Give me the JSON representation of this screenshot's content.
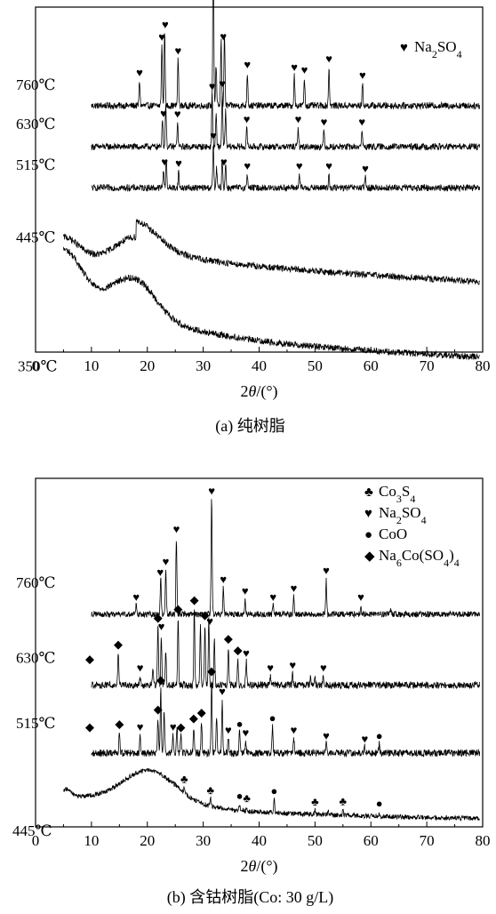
{
  "panels": [
    {
      "id": "a",
      "caption": "(a) 纯树脂",
      "x_axis_title_prefix": "2",
      "x_axis_title_theta": "θ",
      "x_axis_title_suffix": "/(°)",
      "legend": [
        {
          "symbol": "♥",
          "text_parts": [
            [
              "Na",
              ""
            ],
            [
              "2",
              "sub"
            ],
            [
              "SO",
              ""
            ],
            [
              "4",
              "sub"
            ]
          ]
        }
      ],
      "traces": [
        {
          "label": "760℃"
        },
        {
          "label": "630℃"
        },
        {
          "label": "515℃"
        },
        {
          "label": "445℃"
        },
        {
          "label": "350℃"
        }
      ]
    },
    {
      "id": "b",
      "caption": "(b) 含钴树脂(Co: 30 g/L)",
      "x_axis_title_prefix": "2",
      "x_axis_title_theta": "θ",
      "x_axis_title_suffix": "/(°)",
      "legend": [
        {
          "symbol": "♣",
          "text_parts": [
            [
              "Co",
              ""
            ],
            [
              "3",
              "sub"
            ],
            [
              "S",
              ""
            ],
            [
              "4",
              "sub"
            ]
          ]
        },
        {
          "symbol": "♥",
          "text_parts": [
            [
              "Na",
              ""
            ],
            [
              "2",
              "sub"
            ],
            [
              "SO",
              ""
            ],
            [
              "4",
              "sub"
            ]
          ]
        },
        {
          "symbol": "●",
          "text_parts": [
            [
              "CoO",
              ""
            ]
          ]
        },
        {
          "symbol": "◆",
          "text_parts": [
            [
              "Na",
              ""
            ],
            [
              "6",
              "sub"
            ],
            [
              "Co(SO",
              ""
            ],
            [
              "4",
              "sub"
            ],
            [
              ")",
              ""
            ],
            [
              "4",
              "sub"
            ]
          ]
        }
      ],
      "traces": [
        {
          "label": "760℃"
        },
        {
          "label": "630℃"
        },
        {
          "label": "515℃"
        },
        {
          "label": "445℃"
        }
      ]
    }
  ],
  "chart_data": [
    {
      "type": "line",
      "panel": "a",
      "title": "(a) 纯树脂",
      "xlabel": "2θ/(°)",
      "ylabel": "",
      "xlim": [
        0,
        80
      ],
      "xticks": [
        0,
        10,
        20,
        30,
        40,
        50,
        60,
        70,
        80
      ],
      "grid": false,
      "legend_position": "top-right",
      "series": [
        {
          "name": "760℃",
          "baseline": 8.6,
          "background": "flat",
          "noise": 0.12,
          "peaks": [
            [
              18.6,
              0.9
            ],
            [
              22.6,
              2.2
            ],
            [
              23.1,
              2.8
            ],
            [
              25.5,
              1.7
            ],
            [
              31.8,
              6.2
            ],
            [
              32.3,
              1.5
            ],
            [
              33.2,
              2.4
            ],
            [
              33.8,
              2.7
            ],
            [
              37.9,
              1.2
            ],
            [
              46.3,
              1.1
            ],
            [
              48.1,
              1.0
            ],
            [
              52.5,
              1.4
            ],
            [
              58.5,
              0.8
            ]
          ],
          "markers": [
            {
              "x": 18.6,
              "symbol": "♥"
            },
            {
              "x": 22.6,
              "symbol": "♥"
            },
            {
              "x": 23.2,
              "symbol": "♥"
            },
            {
              "x": 25.5,
              "symbol": "♥"
            },
            {
              "x": 31.8,
              "symbol": "♥"
            },
            {
              "x": 33.6,
              "symbol": "♥"
            },
            {
              "x": 37.9,
              "symbol": "♥"
            },
            {
              "x": 46.3,
              "symbol": "♥"
            },
            {
              "x": 48.1,
              "symbol": "♥"
            },
            {
              "x": 52.5,
              "symbol": "♥"
            },
            {
              "x": 58.5,
              "symbol": "♥"
            }
          ]
        },
        {
          "name": "630℃",
          "baseline": 7.1,
          "background": "flat",
          "noise": 0.12,
          "peaks": [
            [
              22.7,
              1.1
            ],
            [
              23.3,
              1.6
            ],
            [
              25.4,
              0.9
            ],
            [
              31.6,
              1.9
            ],
            [
              32.3,
              1.2
            ],
            [
              33.4,
              2.0
            ],
            [
              34.0,
              1.3
            ],
            [
              37.8,
              0.7
            ],
            [
              47.0,
              0.7
            ],
            [
              51.6,
              0.6
            ],
            [
              58.4,
              0.6
            ]
          ],
          "markers": [
            {
              "x": 22.9,
              "symbol": "♥"
            },
            {
              "x": 25.4,
              "symbol": "♥"
            },
            {
              "x": 31.6,
              "symbol": "♥"
            },
            {
              "x": 33.4,
              "symbol": "♥"
            },
            {
              "x": 37.8,
              "symbol": "♥"
            },
            {
              "x": 47.0,
              "symbol": "♥"
            },
            {
              "x": 51.6,
              "symbol": "♥"
            },
            {
              "x": 58.4,
              "symbol": "♥"
            }
          ]
        },
        {
          "name": "515℃",
          "baseline": 5.6,
          "background": "flat",
          "noise": 0.12,
          "peaks": [
            [
              22.9,
              0.7
            ],
            [
              23.4,
              1.0
            ],
            [
              25.6,
              0.6
            ],
            [
              31.8,
              1.6
            ],
            [
              32.4,
              0.7
            ],
            [
              33.4,
              1.0
            ],
            [
              34.0,
              0.9
            ],
            [
              37.9,
              0.5
            ],
            [
              47.2,
              0.5
            ],
            [
              52.5,
              0.5
            ],
            [
              59.0,
              0.4
            ]
          ],
          "markers": [
            {
              "x": 23.1,
              "symbol": "♥"
            },
            {
              "x": 25.6,
              "symbol": "♥"
            },
            {
              "x": 31.8,
              "symbol": "♥"
            },
            {
              "x": 33.7,
              "symbol": "♥"
            },
            {
              "x": 37.9,
              "symbol": "♥"
            },
            {
              "x": 47.2,
              "symbol": "♥"
            },
            {
              "x": 52.5,
              "symbol": "♥"
            },
            {
              "x": 59.0,
              "symbol": "♥"
            }
          ]
        },
        {
          "name": "445℃",
          "baseline": 2.9,
          "background": "amorphous-high",
          "noise": 0.12,
          "peaks": [],
          "markers": []
        },
        {
          "name": "350℃",
          "baseline": 0.2,
          "background": "amorphous-low",
          "noise": 0.12,
          "peaks": [],
          "markers": []
        }
      ]
    },
    {
      "type": "line",
      "panel": "b",
      "title": "(b) 含钴树脂(Co: 30 g/L)",
      "xlabel": "2θ/(°)",
      "ylabel": "",
      "xlim": [
        0,
        80
      ],
      "xticks": [
        0,
        10,
        20,
        30,
        40,
        50,
        60,
        70,
        80
      ],
      "grid": false,
      "legend_position": "top-right",
      "series": [
        {
          "name": "760℃",
          "baseline": 6.6,
          "background": "flat",
          "noise": 0.1,
          "peaks": [
            [
              18.0,
              0.3
            ],
            [
              22.4,
              1.2
            ],
            [
              23.3,
              1.5
            ],
            [
              25.2,
              2.6
            ],
            [
              31.5,
              3.9
            ],
            [
              33.6,
              0.9
            ],
            [
              37.5,
              0.5
            ],
            [
              42.5,
              0.3
            ],
            [
              46.2,
              0.6
            ],
            [
              52.0,
              1.2
            ],
            [
              58.2,
              0.3
            ],
            [
              63.5,
              0.2
            ]
          ],
          "markers": [
            {
              "x": 18.0,
              "symbol": "♥"
            },
            {
              "x": 22.3,
              "symbol": "♥"
            },
            {
              "x": 23.3,
              "symbol": "♥"
            },
            {
              "x": 25.2,
              "symbol": "♥"
            },
            {
              "x": 31.5,
              "symbol": "♥"
            },
            {
              "x": 33.6,
              "symbol": "♥"
            },
            {
              "x": 37.5,
              "symbol": "♥"
            },
            {
              "x": 42.5,
              "symbol": "♥"
            },
            {
              "x": 46.2,
              "symbol": "♥"
            },
            {
              "x": 52.0,
              "symbol": "♥"
            },
            {
              "x": 58.2,
              "symbol": "♥"
            }
          ]
        },
        {
          "name": "630℃",
          "baseline": 4.2,
          "background": "flat",
          "noise": 0.12,
          "peaks": [
            [
              9.7,
              0.6
            ],
            [
              14.8,
              1.1
            ],
            [
              18.7,
              0.3
            ],
            [
              21.0,
              0.5
            ],
            [
              21.9,
              2.0
            ],
            [
              22.5,
              1.7
            ],
            [
              23.3,
              1.2
            ],
            [
              25.5,
              2.3
            ],
            [
              28.4,
              2.6
            ],
            [
              29.5,
              2.0
            ],
            [
              30.3,
              2.1
            ],
            [
              31.0,
              2.3
            ],
            [
              32.0,
              1.6
            ],
            [
              34.5,
              1.3
            ],
            [
              36.2,
              0.9
            ],
            [
              37.7,
              0.8
            ],
            [
              42.0,
              0.3
            ],
            [
              46.0,
              0.4
            ],
            [
              49.2,
              0.3
            ],
            [
              50.0,
              0.2
            ],
            [
              51.5,
              0.3
            ]
          ],
          "markers": [
            {
              "x": 9.7,
              "symbol": "◆"
            },
            {
              "x": 14.8,
              "symbol": "◆"
            },
            {
              "x": 18.7,
              "symbol": "♥"
            },
            {
              "x": 21.9,
              "symbol": "◆"
            },
            {
              "x": 22.5,
              "symbol": "♥"
            },
            {
              "x": 25.5,
              "symbol": "◆"
            },
            {
              "x": 28.4,
              "symbol": "◆"
            },
            {
              "x": 30.3,
              "symbol": "◆"
            },
            {
              "x": 31.2,
              "symbol": "♥"
            },
            {
              "x": 34.5,
              "symbol": "◆"
            },
            {
              "x": 36.2,
              "symbol": "◆"
            },
            {
              "x": 37.7,
              "symbol": "♥"
            },
            {
              "x": 42.0,
              "symbol": "♥"
            },
            {
              "x": 46.0,
              "symbol": "♥"
            },
            {
              "x": 51.5,
              "symbol": "♥"
            }
          ]
        },
        {
          "name": "515℃",
          "baseline": 1.9,
          "background": "flat",
          "noise": 0.12,
          "peaks": [
            [
              9.7,
              0.6
            ],
            [
              15.0,
              0.7
            ],
            [
              18.7,
              0.6
            ],
            [
              21.9,
              1.2
            ],
            [
              22.4,
              2.2
            ],
            [
              23.0,
              1.4
            ],
            [
              24.6,
              0.6
            ],
            [
              25.3,
              0.9
            ],
            [
              26.0,
              0.6
            ],
            [
              28.3,
              0.9
            ],
            [
              29.7,
              1.1
            ],
            [
              31.5,
              2.5
            ],
            [
              32.4,
              1.3
            ],
            [
              33.4,
              1.8
            ],
            [
              34.5,
              0.5
            ],
            [
              36.5,
              0.7
            ],
            [
              37.6,
              0.4
            ],
            [
              42.4,
              0.9
            ],
            [
              46.2,
              0.5
            ],
            [
              52.0,
              0.3
            ],
            [
              58.9,
              0.2
            ],
            [
              61.5,
              0.3
            ]
          ],
          "markers": [
            {
              "x": 9.7,
              "symbol": "◆"
            },
            {
              "x": 15.0,
              "symbol": "◆"
            },
            {
              "x": 18.7,
              "symbol": "♥"
            },
            {
              "x": 21.9,
              "symbol": "◆"
            },
            {
              "x": 22.4,
              "symbol": "◆"
            },
            {
              "x": 24.6,
              "symbol": "♥"
            },
            {
              "x": 26.0,
              "symbol": "◆"
            },
            {
              "x": 28.3,
              "symbol": "◆"
            },
            {
              "x": 29.7,
              "symbol": "◆"
            },
            {
              "x": 31.5,
              "symbol": "◆"
            },
            {
              "x": 33.4,
              "symbol": "♥"
            },
            {
              "x": 34.5,
              "symbol": "♥"
            },
            {
              "x": 36.5,
              "symbol": "●"
            },
            {
              "x": 37.6,
              "symbol": "♥"
            },
            {
              "x": 42.4,
              "symbol": "●"
            },
            {
              "x": 46.2,
              "symbol": "♥"
            },
            {
              "x": 52.0,
              "symbol": "♥"
            },
            {
              "x": 58.9,
              "symbol": "♥"
            },
            {
              "x": 61.5,
              "symbol": "●"
            }
          ]
        },
        {
          "name": "445℃",
          "baseline": 0.0,
          "background": "amorphous-b",
          "noise": 0.08,
          "peaks": [
            [
              26.6,
              0.2
            ],
            [
              31.3,
              0.25
            ],
            [
              36.5,
              0.2
            ],
            [
              37.8,
              0.15
            ],
            [
              42.7,
              0.45
            ],
            [
              50.0,
              0.15
            ],
            [
              52.4,
              0.1
            ],
            [
              55.0,
              0.2
            ],
            [
              61.5,
              0.15
            ]
          ],
          "markers": [
            {
              "x": 26.6,
              "symbol": "♣"
            },
            {
              "x": 31.3,
              "symbol": "♣"
            },
            {
              "x": 36.5,
              "symbol": "●"
            },
            {
              "x": 37.8,
              "symbol": "♣"
            },
            {
              "x": 42.7,
              "symbol": "●"
            },
            {
              "x": 50.0,
              "symbol": "♣"
            },
            {
              "x": 55.0,
              "symbol": "♣"
            },
            {
              "x": 61.5,
              "symbol": "●"
            }
          ]
        }
      ]
    }
  ]
}
